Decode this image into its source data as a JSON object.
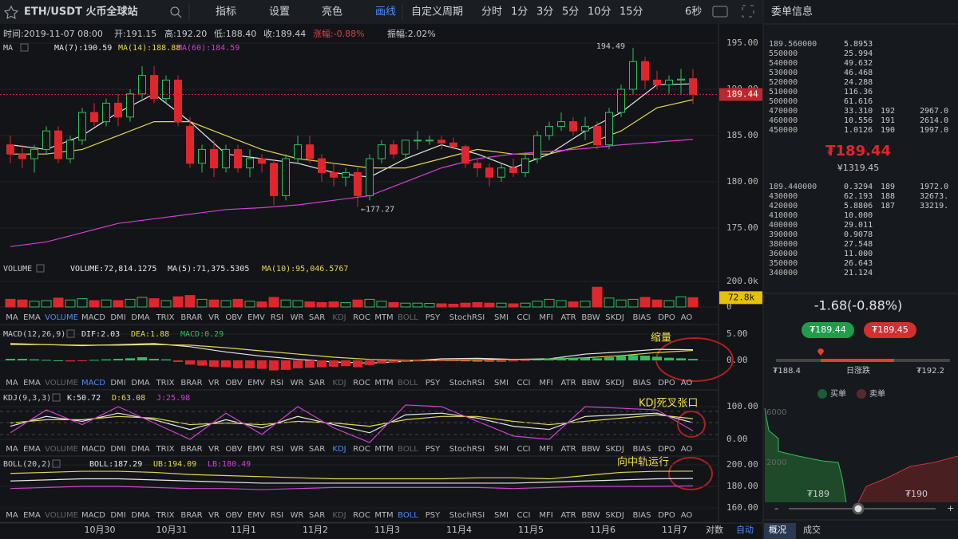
{
  "toolbar": {
    "symbol": "ETH/USDT 火币全球站",
    "buttons": [
      "指标",
      "设置",
      "亮色",
      "画线"
    ],
    "active_button": 3,
    "custom_period": "自定义周期",
    "periods": [
      "分时",
      "1分",
      "3分",
      "5分",
      "10分",
      "15分"
    ],
    "refresh": "6秒"
  },
  "info": [
    "时间:2019-11-07 08:00",
    "开:191.15",
    "高:192.20",
    "低:188.40",
    "收:189.44",
    "涨幅:-0.88%",
    "振幅:2.02%"
  ],
  "chart": {
    "x_labels": [
      "10月30",
      "10月31",
      "11月1",
      "11月2",
      "11月3",
      "11月4",
      "11月5",
      "11月6",
      "11月7"
    ],
    "scale_buttons": [
      "对数",
      "自动"
    ],
    "indicator_tabs": [
      "MA",
      "EMA",
      "VOLUME",
      "MACD",
      "DMI",
      "DMA",
      "TRIX",
      "BRAR",
      "VR",
      "OBV",
      "EMV",
      "RSI",
      "WR",
      "SAR",
      "KDJ",
      "ROC",
      "MTM",
      "BOLL",
      "PSY",
      "StochRSI",
      "SMI",
      "CCI",
      "MFI",
      "ATR",
      "BBW",
      "SKDJ",
      "BIAS",
      "DPO",
      "AO"
    ],
    "line_index": [
      0,
      3,
      6,
      9,
      12,
      15,
      18,
      21,
      24,
      27,
      30,
      33,
      36,
      39,
      42,
      45,
      48,
      51,
      54,
      57
    ],
    "price": {
      "title": "MA",
      "legend": [
        {
          "text": "MA(7):190.59",
          "color": "#e8e8e8"
        },
        {
          "text": "MA(14):188.88",
          "color": "#e6d84a"
        },
        {
          "text": "MA(60):184.59",
          "color": "#d43fd4"
        }
      ],
      "ylim": [
        171.38,
        197.07
      ],
      "yticks": [
        {
          "value": 195,
          "label": "195.00"
        },
        {
          "value": 190,
          "label": "190.00"
        },
        {
          "value": 185,
          "label": "185.00"
        },
        {
          "value": 180,
          "label": "180.00"
        },
        {
          "value": 175,
          "label": "175.00"
        }
      ],
      "last": 189.44,
      "high_label": {
        "index": 52,
        "label": "194.49"
      },
      "low_label": {
        "index": 29,
        "label": "←177.27"
      },
      "candles": [
        [
          184,
          185,
          182,
          183
        ],
        [
          183,
          184,
          181.5,
          182.5
        ],
        [
          182.5,
          184,
          181,
          183.5
        ],
        [
          183.5,
          186,
          183,
          185.5
        ],
        [
          185.5,
          186,
          182,
          182.5
        ],
        [
          182.5,
          185,
          182,
          184.5
        ],
        [
          184.5,
          188,
          184,
          187.5
        ],
        [
          187.5,
          188.5,
          186,
          186.5
        ],
        [
          186.5,
          189,
          186,
          188.5
        ],
        [
          188.5,
          189.5,
          186,
          187
        ],
        [
          187,
          190,
          186.5,
          189.5
        ],
        [
          189.5,
          192.5,
          189,
          191.5
        ],
        [
          191.5,
          192.5,
          188.5,
          189
        ],
        [
          189,
          191.5,
          188.5,
          191
        ],
        [
          191,
          191.5,
          186,
          186.5
        ],
        [
          186,
          187,
          181.5,
          182
        ],
        [
          182,
          184,
          181,
          183.5
        ],
        [
          183.5,
          184.5,
          180.5,
          181.5
        ],
        [
          181.5,
          184,
          181,
          183.5
        ],
        [
          183.5,
          184,
          181,
          181.5
        ],
        [
          181.5,
          183.5,
          180.5,
          182.5
        ],
        [
          182.5,
          183,
          181,
          182
        ],
        [
          182,
          182.5,
          177.5,
          178.5
        ],
        [
          178.5,
          183,
          178,
          182.5
        ],
        [
          182.5,
          185,
          182,
          184
        ],
        [
          184,
          185,
          182,
          182.5
        ],
        [
          182.5,
          183,
          180,
          181
        ],
        [
          181,
          182,
          179.5,
          180.5
        ],
        [
          180.5,
          181.5,
          179.5,
          181
        ],
        [
          181,
          181.5,
          177.27,
          178.5
        ],
        [
          178.5,
          183,
          178,
          182.5
        ],
        [
          182.5,
          184.5,
          182,
          184
        ],
        [
          184,
          184.5,
          182.5,
          183
        ],
        [
          183,
          184.5,
          182.5,
          184.5
        ],
        [
          184.5,
          185.5,
          183.5,
          184.5
        ],
        [
          184.5,
          185,
          184,
          184.5
        ],
        [
          184.5,
          185,
          183.5,
          184.2
        ],
        [
          184.2,
          184.8,
          183.5,
          183.8
        ],
        [
          183.8,
          184,
          181.5,
          182
        ],
        [
          182,
          182.5,
          180.5,
          181.5
        ],
        [
          181.5,
          182,
          179.5,
          180.5
        ],
        [
          180.5,
          182,
          180,
          181.5
        ],
        [
          181.5,
          182.5,
          180.5,
          181
        ],
        [
          181,
          183,
          180.5,
          182.5
        ],
        [
          182.5,
          185.5,
          182,
          185
        ],
        [
          185,
          186.5,
          184.5,
          186
        ],
        [
          186,
          187.5,
          185.5,
          186.5
        ],
        [
          186.5,
          187,
          185,
          185.5
        ],
        [
          185.5,
          187,
          184.5,
          186
        ],
        [
          186,
          186.5,
          183.5,
          184
        ],
        [
          184,
          188,
          183.5,
          187.5
        ],
        [
          187.5,
          190.5,
          187,
          190
        ],
        [
          190,
          194.49,
          189.5,
          193
        ],
        [
          193,
          193.5,
          190,
          191
        ],
        [
          191,
          192,
          190,
          190.5
        ],
        [
          190.5,
          191.5,
          189.5,
          191
        ],
        [
          191,
          192.2,
          189.5,
          191.1
        ],
        [
          191.15,
          192.2,
          188.4,
          189.44
        ]
      ],
      "lines": [
        {
          "color": "#e8e8e8",
          "values": [
            184,
            183.5,
            185,
            187.5,
            189.5,
            186.5,
            183,
            182.5,
            182,
            181,
            180.5,
            182.5,
            184,
            183,
            181.5,
            183,
            185.5,
            187.5,
            190.5,
            190.59
          ]
        },
        {
          "color": "#e6d84a",
          "values": [
            183,
            183,
            183.5,
            185,
            186.5,
            186.5,
            185,
            183.5,
            182.5,
            182,
            181.5,
            181.5,
            182.5,
            183.5,
            183,
            183,
            184,
            185.5,
            188,
            188.88
          ]
        },
        {
          "color": "#d43fd4",
          "values": [
            173,
            173.5,
            174.5,
            175.5,
            176,
            176.5,
            177,
            177.2,
            177.5,
            178,
            178.5,
            180,
            181.5,
            182.5,
            183,
            183.3,
            183.6,
            184,
            184.3,
            184.59
          ]
        }
      ]
    },
    "volume": {
      "title": "VOLUME",
      "active_tab": 2,
      "legend": [
        {
          "text": "VOLUME:72,814.1275",
          "color": "#e8e8e8"
        },
        {
          "text": "MA(5):71,375.5305",
          "color": "#e8e8e8"
        },
        {
          "text": "MA(10):95,046.5767",
          "color": "#e6d84a"
        }
      ],
      "ylim": [
        -18750,
        331250
      ],
      "yticks": [
        {
          "value": 200000,
          "label": "200.0k"
        },
        0
      ],
      "last": {
        "value": 72814.1275,
        "label": "72.8k"
      },
      "values": [
        60000,
        55000,
        45000,
        50000,
        70000,
        55000,
        65000,
        50000,
        55000,
        50000,
        60000,
        75000,
        65000,
        50000,
        80000,
        90000,
        60000,
        55000,
        50000,
        60000,
        45000,
        40000,
        75000,
        55000,
        50000,
        40000,
        35000,
        40000,
        35000,
        55000,
        60000,
        45000,
        35000,
        30000,
        30000,
        28000,
        25000,
        22000,
        30000,
        35000,
        30000,
        30000,
        25000,
        30000,
        45000,
        60000,
        50000,
        40000,
        45000,
        155000,
        70000,
        55000,
        60000,
        75000,
        55000,
        50000,
        80000,
        72814.1275
      ]
    },
    "macd": {
      "title": "MACD(12,26,9)",
      "active_tab": 3,
      "legend": [
        {
          "text": "DIF:2.03",
          "color": "#e8e8e8"
        },
        {
          "text": "DEA:1.88",
          "color": "#e6d84a"
        },
        {
          "text": "MACD:0.29",
          "color": "#2fbf5a"
        }
      ],
      "ylim": [
        -3.03,
        6.36
      ],
      "yticks": [
        {
          "value": 5,
          "label": "5.00"
        },
        {
          "value": 0,
          "label": "0.00"
        }
      ],
      "histogram": [
        0.3,
        0.3,
        0.2,
        0.1,
        0,
        -0.2,
        -0.1,
        0.1,
        0.2,
        0.3,
        0.4,
        0.6,
        0.3,
        0.2,
        -0.3,
        -0.8,
        -1.0,
        -1.2,
        -1.3,
        -1.5,
        -1.5,
        -1.6,
        -1.9,
        -1.8,
        -1.5,
        -1.4,
        -1.3,
        -1.2,
        -1.1,
        -1.3,
        -0.9,
        -0.6,
        -0.4,
        -0.3,
        -0.2,
        -0.1,
        -0.1,
        -0.1,
        -0.2,
        -0.3,
        -0.3,
        -0.3,
        -0.2,
        -0.1,
        0.2,
        0.4,
        0.5,
        0.5,
        0.5,
        0.4,
        0.6,
        0.8,
        1.0,
        0.9,
        0.7,
        0.5,
        0.4,
        0.29
      ],
      "lines": [
        {
          "color": "#e8e8e8",
          "values": [
            3.2,
            3.0,
            2.8,
            3.0,
            3.2,
            2.6,
            1.6,
            0.8,
            0.2,
            -0.3,
            -0.5,
            -0.2,
            0.3,
            0.4,
            0.2,
            0.3,
            1.2,
            1.6,
            2.1,
            2.03
          ]
        },
        {
          "color": "#e6d84a",
          "values": [
            3.0,
            3.0,
            2.9,
            2.9,
            3.0,
            2.9,
            2.4,
            1.8,
            1.2,
            0.6,
            0.2,
            0.0,
            0.0,
            0.1,
            0.2,
            0.2,
            0.5,
            0.9,
            1.5,
            1.88
          ]
        }
      ],
      "annotation": "缩量"
    },
    "kdj": {
      "title": "KDJ(9,3,3)",
      "active_tab": 14,
      "legend": [
        {
          "text": "K:50.72",
          "color": "#e8e8e8"
        },
        {
          "text": "D:63.08",
          "color": "#e6d84a"
        },
        {
          "text": "J:25.98",
          "color": "#d43fd4"
        }
      ],
      "ylim": [
        -12.2,
        143.9
      ],
      "yticks": [
        {
          "value": 100,
          "label": "100.00"
        },
        {
          "value": 0,
          "label": "0.00"
        }
      ],
      "lines": [
        {
          "color": "#e8e8e8",
          "values": [
            40,
            70,
            55,
            80,
            60,
            30,
            60,
            35,
            70,
            45,
            20,
            75,
            80,
            65,
            40,
            30,
            70,
            75,
            80,
            50.72
          ]
        },
        {
          "color": "#e6d84a",
          "values": [
            50,
            60,
            60,
            70,
            65,
            45,
            50,
            45,
            55,
            50,
            40,
            60,
            70,
            70,
            55,
            45,
            55,
            65,
            75,
            63.08
          ]
        },
        {
          "color": "#d43fd4",
          "values": [
            20,
            90,
            45,
            100,
            50,
            0,
            80,
            15,
            100,
            35,
            -10,
            105,
            100,
            55,
            10,
            0,
            100,
            95,
            90,
            25.98
          ]
        }
      ],
      "annotation": "KDJ死叉张口"
    },
    "boll": {
      "title": "BOLL(20,2)",
      "active_tab": 17,
      "legend": [
        {
          "text": "BOLL:187.29",
          "color": "#e8e8e8"
        },
        {
          "text": "UB:194.09",
          "color": "#e6d84a"
        },
        {
          "text": "LB:180.49",
          "color": "#d43fd4"
        }
      ],
      "ylim": [
        159.3,
        208.1
      ],
      "yticks": [
        {
          "value": 200,
          "label": "200.00"
        },
        {
          "value": 180,
          "label": "180.00"
        },
        {
          "value": 160,
          "label": "160.00"
        }
      ],
      "lines": [
        {
          "color": "#e8e8e8",
          "values": [
            185,
            186,
            187,
            187,
            186,
            185,
            184,
            183,
            183,
            183,
            183,
            183,
            183,
            183,
            183,
            184,
            185,
            186,
            187,
            187.29
          ]
        },
        {
          "color": "#e6d84a",
          "values": [
            192,
            193,
            194,
            194,
            193,
            191,
            190,
            189,
            188,
            187,
            187,
            187,
            187,
            188,
            188,
            187,
            190,
            193,
            194,
            194.09
          ]
        },
        {
          "color": "#d43fd4",
          "values": [
            178,
            179,
            180,
            180,
            179,
            178,
            178,
            177,
            178,
            179,
            179,
            179,
            179,
            179,
            178,
            179,
            180,
            180,
            180,
            180.49
          ]
        }
      ],
      "annotation": "向中轨运行"
    }
  },
  "order_book": {
    "title": "委单信息",
    "asks": [
      [
        "189.560000",
        "5.8953"
      ],
      [
        "550000",
        "25.994"
      ],
      [
        "540000",
        "49.632"
      ],
      [
        "530000",
        "46.468"
      ],
      [
        "520000",
        "24.288"
      ],
      [
        "510000",
        "116.36"
      ],
      [
        "500000",
        "61.616"
      ],
      [
        "470000",
        "33.310",
        "192",
        "2967.0"
      ],
      [
        "460000",
        "10.556",
        "191",
        "2614.0"
      ],
      [
        "450000",
        "1.0126",
        "190",
        "1997.0"
      ]
    ],
    "last_price": "₮189.44",
    "cny": "¥1319.45",
    "bids": [
      [
        "189.440000",
        "0.3294",
        "189",
        "1972.0"
      ],
      [
        "430000",
        "62.193",
        "188",
        "32673."
      ],
      [
        "420000",
        "5.8806",
        "187",
        "33219."
      ],
      [
        "410000",
        "10.000"
      ],
      [
        "400000",
        "29.011"
      ],
      [
        "390000",
        "0.9078"
      ],
      [
        "380000",
        "27.548"
      ],
      [
        "360000",
        "11.000"
      ],
      [
        "350000",
        "26.643"
      ],
      [
        "340000",
        "21.124"
      ]
    ]
  },
  "summary": {
    "change": "-1.68(-0.88%)",
    "buy_price": "₮189.44",
    "sell_price": "₮189.45",
    "low": "₮188.4",
    "range_label": "日涨跌",
    "high": "₮192.2"
  },
  "depth": {
    "legend": [
      "买单",
      "卖单"
    ],
    "yticks": [
      "6000",
      "2000"
    ],
    "x_labels": [
      "₮189",
      "₮190"
    ]
  },
  "tabs": [
    "概况",
    "成交"
  ]
}
